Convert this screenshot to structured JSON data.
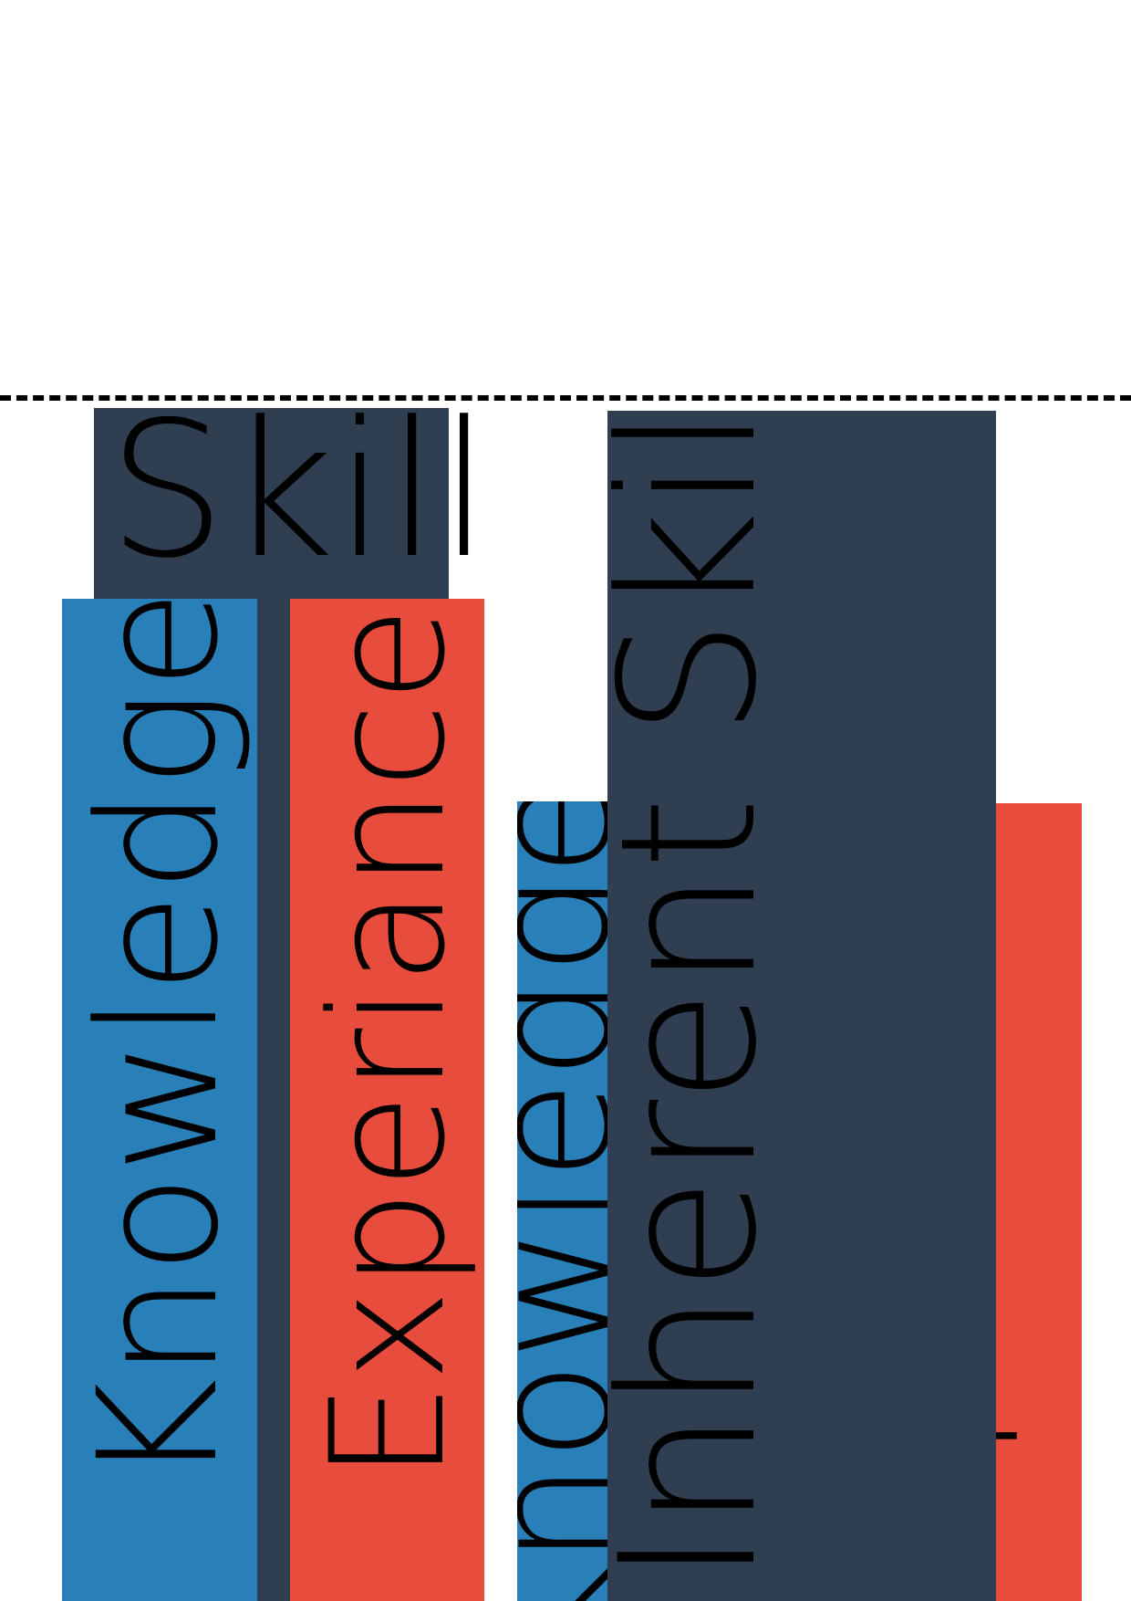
{
  "colors": {
    "dark": "#2f3e50",
    "blue": "#2980b9",
    "red": "#e74c3c",
    "background": "#ffffff",
    "dashed_line": "#000000"
  },
  "left_stack": {
    "skill": "Skill",
    "knowledge": "Knowledge",
    "experience": "Experiance"
  },
  "right_stack": {
    "inherent_skill": "Inherent Skill",
    "knowledge": "Knowledge",
    "experience": "Experiance"
  }
}
